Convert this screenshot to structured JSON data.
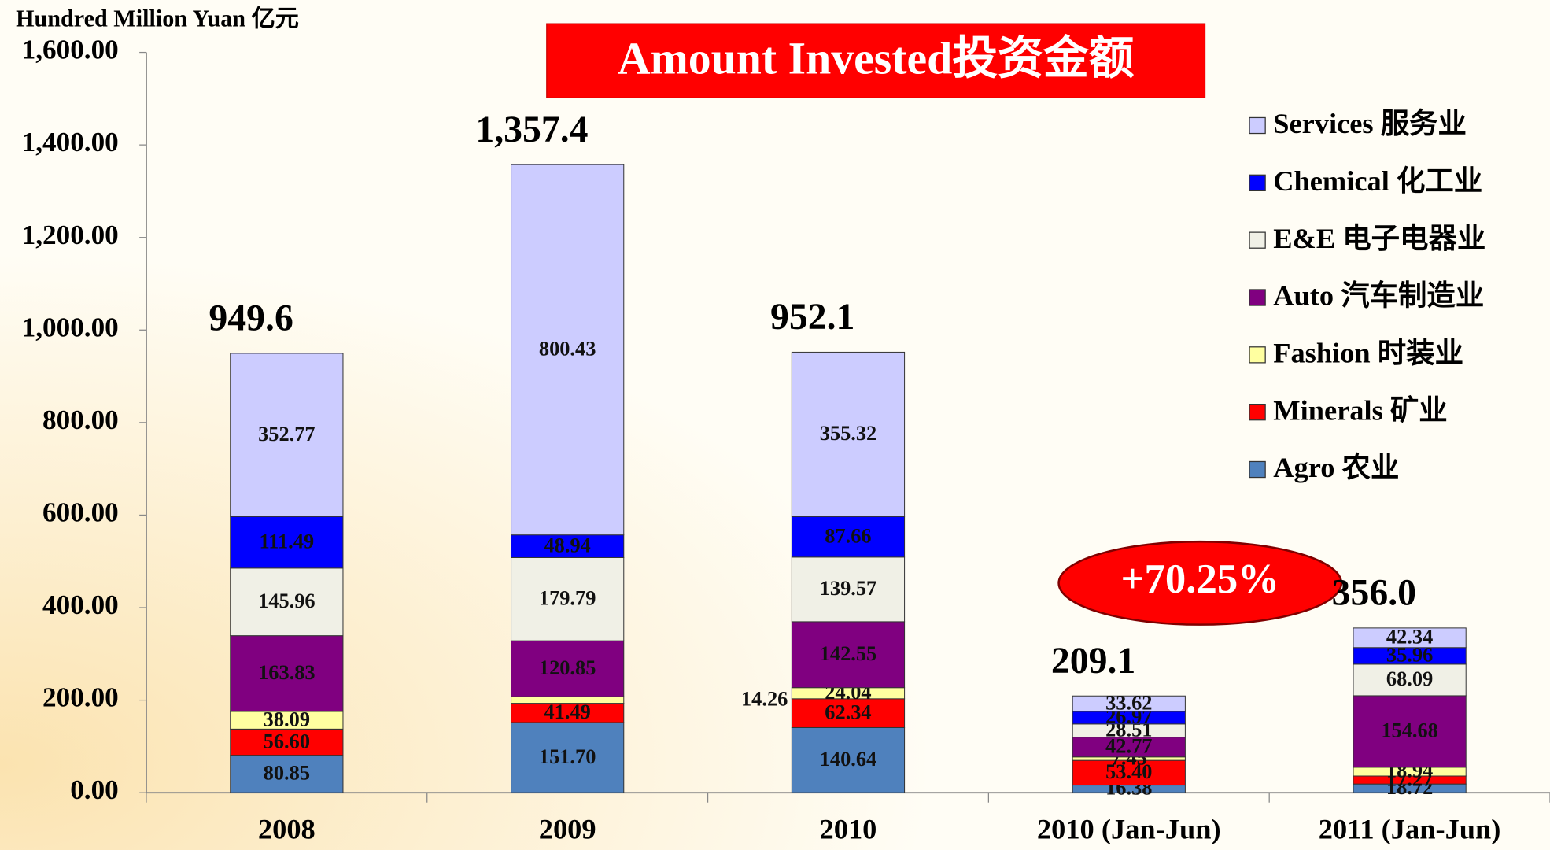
{
  "chart_data": {
    "type": "stacked_bar",
    "title": "Amount Invested投资金额",
    "y_axis_label": "Hundred Million Yuan  亿元",
    "categories": [
      "2008",
      "2009",
      "2010",
      "2010 (Jan-Jun)",
      "2011 (Jan-Jun)"
    ],
    "series": [
      {
        "name": "Agro  农业",
        "color": "#4f81bd",
        "values": [
          80.85,
          151.7,
          140.64,
          16.38,
          18.72
        ],
        "value_labels": [
          "80.85",
          "151.70",
          "140.64",
          "16.38",
          "18.72"
        ]
      },
      {
        "name": "Minerals  矿业",
        "color": "#ff0000",
        "values": [
          56.6,
          41.49,
          62.34,
          53.4,
          17.27
        ],
        "value_labels": [
          "56.60",
          "41.49",
          "62.34",
          "53.40",
          "17.27"
        ]
      },
      {
        "name": "Fashion  时装业",
        "color": "#ffffa0",
        "values": [
          38.09,
          14.26,
          24.04,
          7.45,
          18.94
        ],
        "value_labels": [
          "38.09",
          "14.26",
          "24.04",
          "7.45",
          "18.94"
        ]
      },
      {
        "name": "Auto  汽车制造业",
        "color": "#800080",
        "values": [
          163.83,
          120.85,
          142.55,
          42.77,
          154.68
        ],
        "value_labels": [
          "163.83",
          "120.85",
          "142.55",
          "42.77",
          "154.68"
        ]
      },
      {
        "name": "E&E  电子电器业",
        "color": "#f0f0e6",
        "values": [
          145.96,
          179.79,
          139.57,
          28.51,
          68.09
        ],
        "value_labels": [
          "145.96",
          "179.79",
          "139.57",
          "28.51",
          "68.09"
        ]
      },
      {
        "name": "Chemical  化工业",
        "color": "#0000ff",
        "values": [
          111.49,
          48.94,
          87.66,
          26.97,
          35.96
        ],
        "value_labels": [
          "111.49",
          "48.94",
          "87.66",
          "26.97",
          "35.96"
        ]
      },
      {
        "name": "Services  服务业",
        "color": "#ccccff",
        "values": [
          352.77,
          800.43,
          355.32,
          33.62,
          42.34
        ],
        "value_labels": [
          "352.77",
          "800.43",
          "355.32",
          "33.62",
          "42.34"
        ]
      }
    ],
    "totals": {
      "values": [
        949.6,
        1357.4,
        952.1,
        209.1,
        356.0
      ],
      "value_labels": [
        "949.6",
        "1,357.4",
        "952.1",
        "209.1",
        "356.0"
      ]
    },
    "annotation": "+70.25%",
    "ylim": [
      0,
      1600
    ],
    "yticks": [
      {
        "value": 0,
        "label": "0.00"
      },
      {
        "value": 200,
        "label": "200.00"
      },
      {
        "value": 400,
        "label": "400.00"
      },
      {
        "value": 600,
        "label": "600.00"
      },
      {
        "value": 800,
        "label": "800.00"
      },
      {
        "value": 1000,
        "label": "1,000.00"
      },
      {
        "value": 1200,
        "label": "1,200.00"
      },
      {
        "value": 1400,
        "label": "1,400.00"
      },
      {
        "value": 1600,
        "label": "1,600.00"
      }
    ],
    "legend": "top-right"
  }
}
